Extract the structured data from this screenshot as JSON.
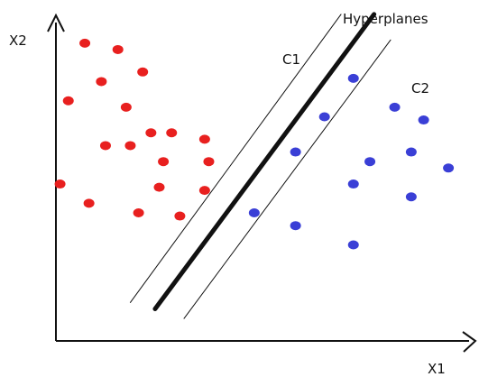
{
  "labels": {
    "x_axis": "X1",
    "y_axis": "X2",
    "title": "Hyperplanes",
    "class1": "C1",
    "class2": "C2"
  },
  "colors": {
    "class1": "#e8201f",
    "class2": "#3a3fd6",
    "axis": "#111111",
    "line": "#111111"
  },
  "chart_data": {
    "type": "scatter",
    "series": [
      {
        "name": "C1",
        "points": [
          [
            0.07,
            0.93
          ],
          [
            0.15,
            0.91
          ],
          [
            0.21,
            0.84
          ],
          [
            0.11,
            0.81
          ],
          [
            0.03,
            0.75
          ],
          [
            0.17,
            0.73
          ],
          [
            0.23,
            0.65
          ],
          [
            0.12,
            0.61
          ],
          [
            0.18,
            0.61
          ],
          [
            0.28,
            0.65
          ],
          [
            0.36,
            0.63
          ],
          [
            0.26,
            0.56
          ],
          [
            0.37,
            0.56
          ],
          [
            0.25,
            0.48
          ],
          [
            0.36,
            0.47
          ],
          [
            0.01,
            0.49
          ],
          [
            0.08,
            0.43
          ],
          [
            0.2,
            0.4
          ],
          [
            0.3,
            0.39
          ]
        ]
      },
      {
        "name": "C2",
        "points": [
          [
            0.72,
            0.82
          ],
          [
            0.65,
            0.7
          ],
          [
            0.82,
            0.73
          ],
          [
            0.89,
            0.69
          ],
          [
            0.76,
            0.56
          ],
          [
            0.58,
            0.59
          ],
          [
            0.86,
            0.59
          ],
          [
            0.95,
            0.54
          ],
          [
            0.72,
            0.49
          ],
          [
            0.86,
            0.45
          ],
          [
            0.48,
            0.4
          ],
          [
            0.58,
            0.36
          ],
          [
            0.72,
            0.3
          ]
        ]
      }
    ],
    "hyperplanes": [
      {
        "role": "boundary",
        "from": [
          0.24,
          0.1
        ],
        "to": [
          0.77,
          1.02
        ]
      },
      {
        "role": "margin",
        "from": [
          0.18,
          0.12
        ],
        "to": [
          0.69,
          1.02
        ]
      },
      {
        "role": "margin",
        "from": [
          0.31,
          0.07
        ],
        "to": [
          0.81,
          0.94
        ]
      }
    ],
    "xlabel": "X1",
    "ylabel": "X2",
    "xlim": [
      0,
      1
    ],
    "ylim": [
      0,
      1
    ],
    "grid": false
  }
}
